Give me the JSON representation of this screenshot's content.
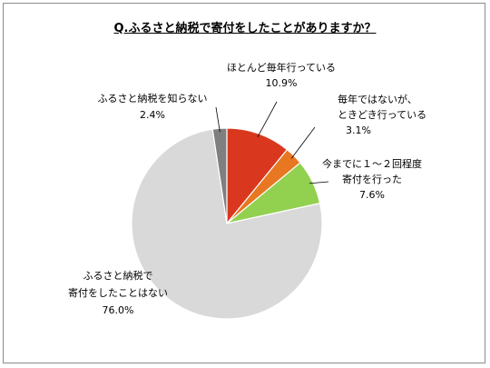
{
  "chart_data": {
    "type": "pie",
    "title": "Q.ふるさと納税で寄付をしたことがありますか？",
    "start_angle_deg": 0,
    "direction": "clockwise",
    "slices": [
      {
        "label_lines": [
          "ほとんど毎年行っている"
        ],
        "value": 10.9,
        "value_text": "10.9%",
        "color": "#d9381e"
      },
      {
        "label_lines": [
          "毎年ではないが、",
          "ときどき行っている"
        ],
        "value": 3.1,
        "value_text": "3.1%",
        "color": "#e87722"
      },
      {
        "label_lines": [
          "今までに１～２回程度",
          "寄付を行った"
        ],
        "value": 7.6,
        "value_text": "7.6%",
        "color": "#92d050"
      },
      {
        "label_lines": [
          "ふるさと納税で",
          "寄付をしたことはない"
        ],
        "value": 76.0,
        "value_text": "76.0%",
        "color": "#d9d9d9"
      },
      {
        "label_lines": [
          "ふるさと納税を知らない"
        ],
        "value": 2.4,
        "value_text": "2.4%",
        "color": "#7f7f7f"
      }
    ]
  }
}
